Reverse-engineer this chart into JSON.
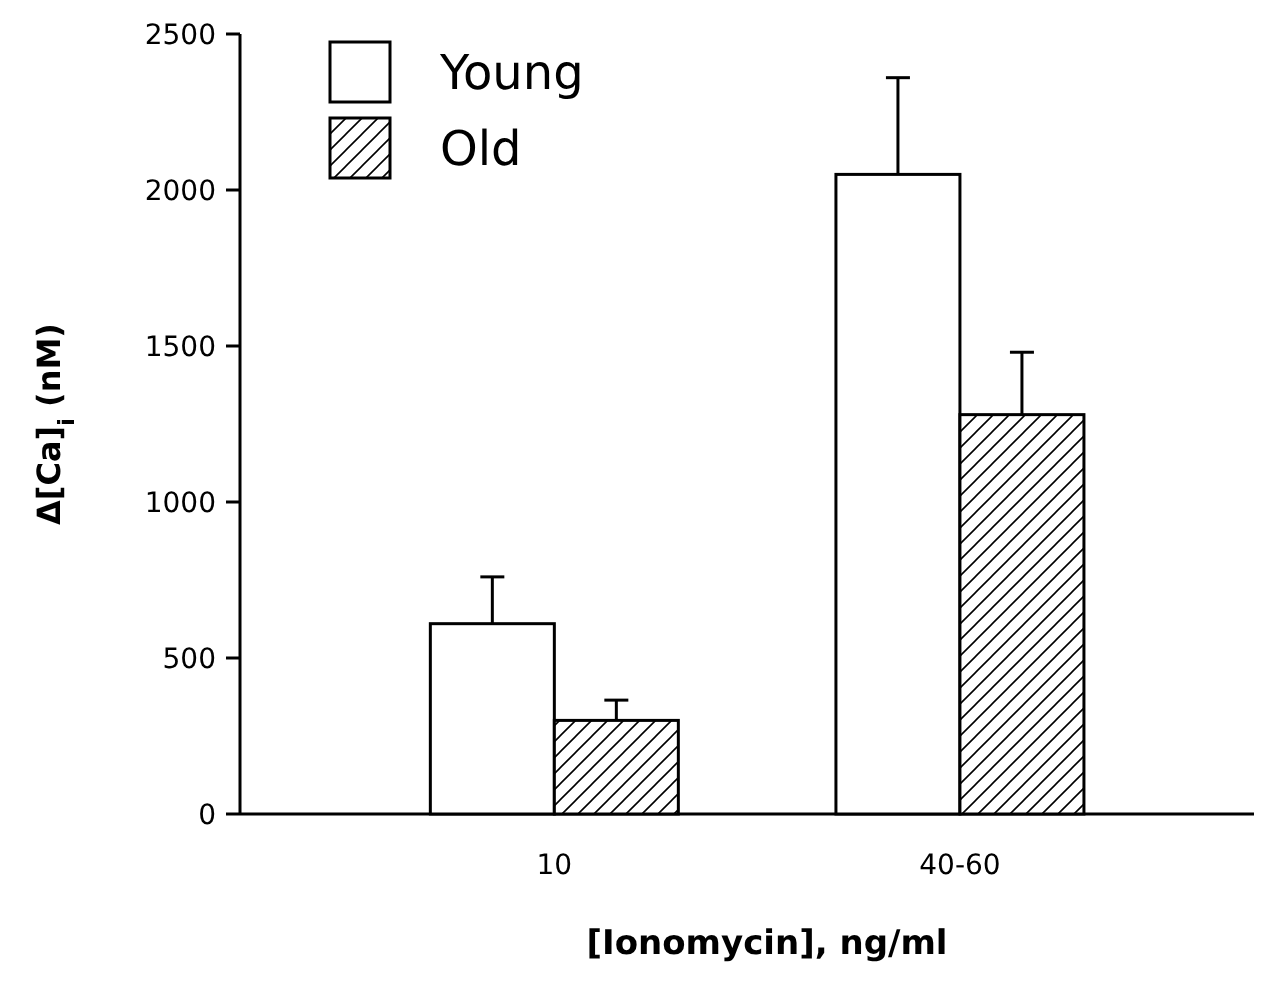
{
  "chart_data": {
    "type": "bar",
    "xlabel": "[Ionomycin], ng/ml",
    "ylabel": "Δ[Ca]$_{i}$ (nM)",
    "categories": [
      "10",
      "40-60"
    ],
    "series": [
      {
        "name": "Young",
        "color": "#ffffff",
        "values": [
          610,
          2050
        ],
        "errors": [
          [
            610,
            760
          ],
          [
            2050,
            2360
          ]
        ]
      },
      {
        "name": "Old",
        "color": "#000000",
        "values": [
          300,
          1280
        ],
        "errors": [
          [
            300,
            365
          ],
          [
            1280,
            1480
          ]
        ]
      }
    ],
    "ylim": [
      0,
      2500
    ],
    "yticks": [
      0,
      500,
      1000,
      1500,
      2000,
      2500
    ],
    "legend": "top left"
  }
}
